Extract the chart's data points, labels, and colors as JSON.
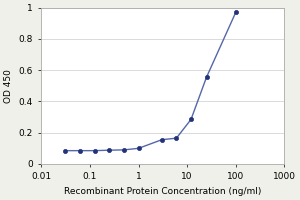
{
  "x": [
    0.03125,
    0.0625,
    0.125,
    0.25,
    0.5,
    1.0,
    3.0,
    6.0,
    12.0,
    25.0,
    100.0
  ],
  "y": [
    0.085,
    0.085,
    0.085,
    0.088,
    0.09,
    0.1,
    0.155,
    0.165,
    0.285,
    0.555,
    0.97
  ],
  "line_color": "#5566aa",
  "marker_color": "#22337a",
  "marker_size": 3,
  "xlabel": "Recombinant Protein Concentration (ng/ml)",
  "ylabel": "OD 450",
  "xlim": [
    0.01,
    1000
  ],
  "ylim": [
    0,
    1.0
  ],
  "yticks": [
    0,
    0.2,
    0.4,
    0.6,
    0.8,
    1
  ],
  "ytick_labels": [
    "0",
    "0.2",
    "0.4",
    "0.6",
    "0.8",
    "1"
  ],
  "xtick_values": [
    0.01,
    0.1,
    1,
    10,
    100,
    1000
  ],
  "xtick_labels": [
    "0.01",
    "0.1",
    "1",
    "10",
    "100",
    "1000"
  ],
  "background_color": "#f0f0ea",
  "plot_bg_color": "#ffffff",
  "label_fontsize": 6.5,
  "tick_fontsize": 6.5,
  "grid_color": "#cccccc",
  "spine_color": "#aaaaaa",
  "linewidth": 1.0
}
